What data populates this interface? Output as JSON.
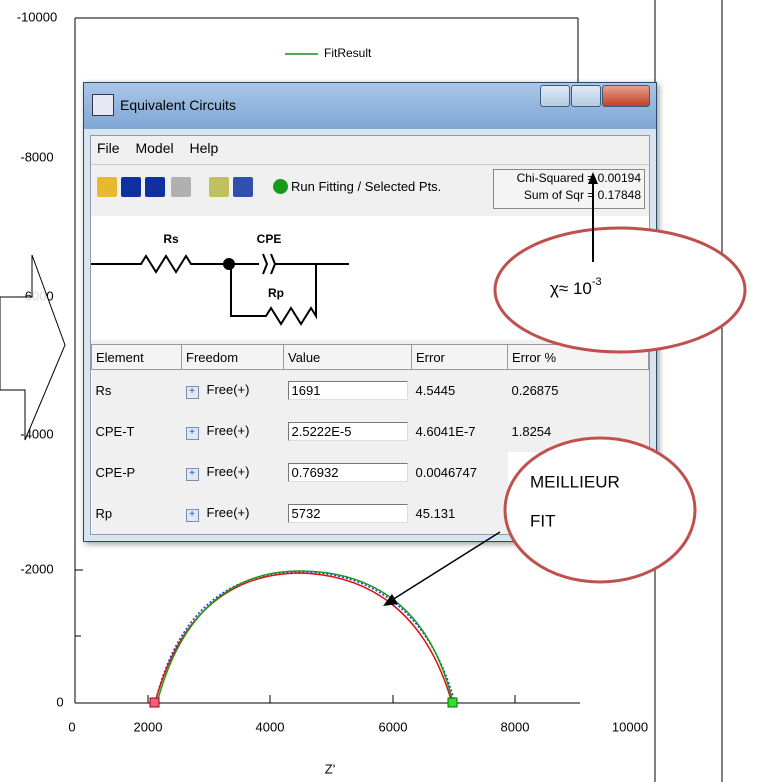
{
  "plot": {
    "yticks": [
      "-10000",
      "-8000",
      "-6000",
      "-4000",
      "-2000",
      "0"
    ],
    "xticks": [
      "0",
      "2000",
      "4000",
      "6000",
      "8000",
      "10000"
    ],
    "xlabel": "Z'",
    "legend": "FitResult"
  },
  "window": {
    "title": "Equivalent Circuits",
    "menu": [
      "File",
      "Model",
      "Help"
    ],
    "run_button": "Run Fitting / Selected Pts.",
    "chi_squared": "Chi-Squared = 0.00194",
    "sum_of_squares": "Sum of Sqr = 0.17848",
    "circuit_labels": [
      "Rs",
      "CPE",
      "Rp"
    ],
    "table": {
      "header": [
        "Element",
        "Freedom",
        "Value",
        "Error",
        "Error %"
      ],
      "rows": [
        [
          "Rs",
          "Free(+)",
          "1691",
          "4.5445",
          "0.26875"
        ],
        [
          "CPE-T",
          "Free(+)",
          "2.5222E-5",
          "4.6041E-7",
          "1.8254"
        ],
        [
          "CPE-P",
          "Free(+)",
          "0.76932",
          "0.0046747"
        ],
        [
          "Rp",
          "Free(+)",
          "5732",
          "45.131"
        ]
      ]
    }
  },
  "annotations": {
    "chi": {
      "prefix": "χ≈ 10",
      "exponent": "-3"
    },
    "best_fit": [
      "MEILLIEUR",
      "FIT"
    ]
  }
}
